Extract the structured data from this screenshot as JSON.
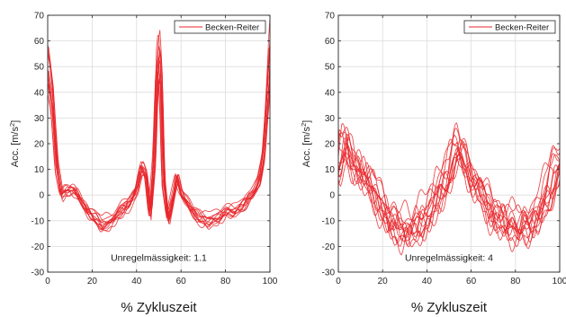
{
  "chart_data": [
    {
      "type": "line",
      "x_ticks": [
        "0",
        "20",
        "40",
        "60",
        "80",
        "100"
      ],
      "y_ticks": [
        "-30",
        "-20",
        "-10",
        "0",
        "10",
        "20",
        "30",
        "40",
        "50",
        "60",
        "70"
      ],
      "xlim": [
        0,
        100
      ],
      "ylim": [
        -30,
        70
      ],
      "xlabel": "% Zykluszeit",
      "ylabel_main": "Acc. [m/s",
      "ylabel_sup": "2",
      "ylabel_end": "]",
      "grid": true,
      "legend": {
        "label": "Becken-Reiter",
        "position": "top-right"
      },
      "annotation": "Unregelmässigkeit: 1.1",
      "line_color": "#e8262a",
      "series_mean": {
        "x": [
          0,
          2,
          4,
          6,
          8,
          10,
          13,
          16,
          20,
          24,
          28,
          32,
          36,
          40,
          42,
          44,
          46,
          48,
          49,
          50,
          51,
          52,
          54,
          56,
          58,
          60,
          64,
          68,
          72,
          76,
          80,
          84,
          88,
          92,
          95,
          97,
          99,
          100
        ],
        "y": [
          48,
          35,
          10,
          0,
          2,
          2,
          0,
          -4,
          -8,
          -12,
          -10,
          -7,
          -4,
          2,
          10,
          8,
          -8,
          15,
          45,
          52,
          40,
          5,
          -10,
          -2,
          7,
          0,
          -5,
          -9,
          -10,
          -9,
          -7,
          -6,
          -4,
          0,
          5,
          15,
          40,
          55
        ]
      },
      "n_series": 13
    },
    {
      "type": "line",
      "x_ticks": [
        "0",
        "20",
        "40",
        "60",
        "80",
        "100"
      ],
      "y_ticks": [
        "-30",
        "-20",
        "-10",
        "0",
        "10",
        "20",
        "30",
        "40",
        "50",
        "60",
        "70"
      ],
      "xlim": [
        0,
        100
      ],
      "ylim": [
        -30,
        70
      ],
      "xlabel": "% Zykluszeit",
      "ylabel_main": "Acc. [m/s",
      "ylabel_sup": "2",
      "ylabel_end": "]",
      "grid": true,
      "legend": {
        "label": "Becken-Reiter",
        "position": "top-right"
      },
      "annotation": "Unregelmässigkeit: 4",
      "line_color": "#e8262a",
      "series_mean": {
        "x": [
          0,
          2,
          4,
          6,
          8,
          10,
          14,
          18,
          22,
          26,
          30,
          34,
          38,
          42,
          46,
          50,
          53,
          55,
          58,
          62,
          66,
          70,
          74,
          78,
          82,
          86,
          90,
          94,
          97,
          100
        ],
        "y": [
          10,
          20,
          18,
          14,
          12,
          10,
          5,
          -2,
          -7,
          -11,
          -13,
          -12,
          -9,
          -4,
          3,
          10,
          17,
          18,
          12,
          5,
          -2,
          -6,
          -9,
          -11,
          -12,
          -10,
          -7,
          0,
          8,
          15
        ]
      },
      "n_series": 14
    }
  ]
}
